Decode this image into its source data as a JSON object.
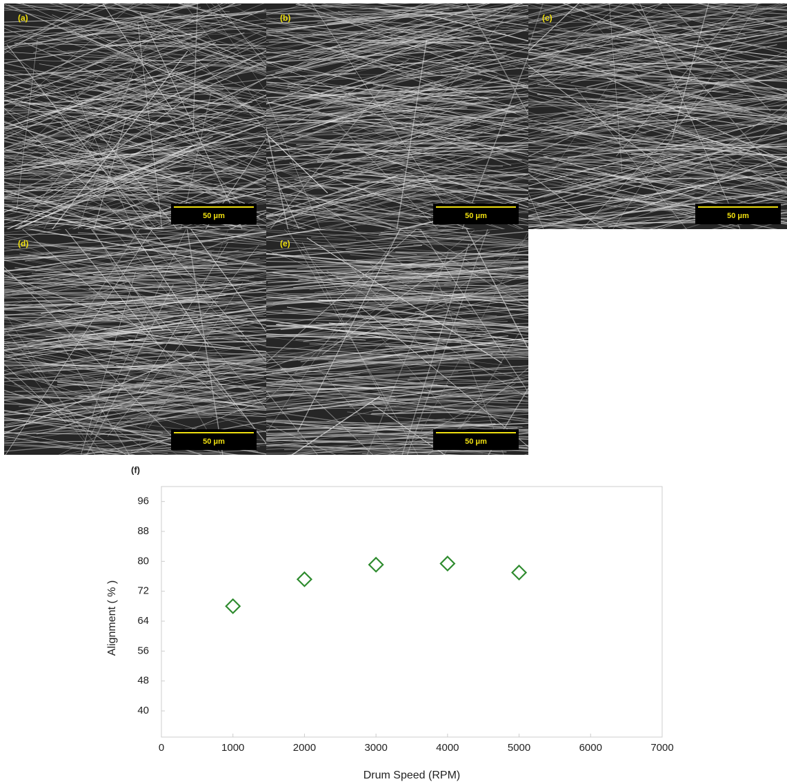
{
  "panels": [
    {
      "label": "(a)",
      "scale_bar": "50 μm"
    },
    {
      "label": "(b)",
      "scale_bar": "50 μm"
    },
    {
      "label": "(c)",
      "scale_bar": "50 μm"
    },
    {
      "label": "(d)",
      "scale_bar": "50 μm"
    },
    {
      "label": "(e)",
      "scale_bar": "50 μm"
    }
  ],
  "chart_data": {
    "type": "scatter",
    "title": "(f)",
    "x_label": "Drum Speed (RPM)",
    "y_label": "Alignment ( % )",
    "x": [
      1000,
      2000,
      3000,
      4000,
      5000
    ],
    "series": [
      {
        "color": "#2e8b2e",
        "values": [
          68,
          75.2,
          79.1,
          79.4,
          77
        ]
      }
    ],
    "xlim": [
      0,
      7000
    ],
    "xticks": [
      0,
      1000,
      2000,
      3000,
      4000,
      5000,
      6000,
      7000
    ],
    "ylim": [
      33,
      100
    ],
    "yticks": [
      40,
      48,
      56,
      64,
      72,
      80,
      88,
      96
    ]
  }
}
